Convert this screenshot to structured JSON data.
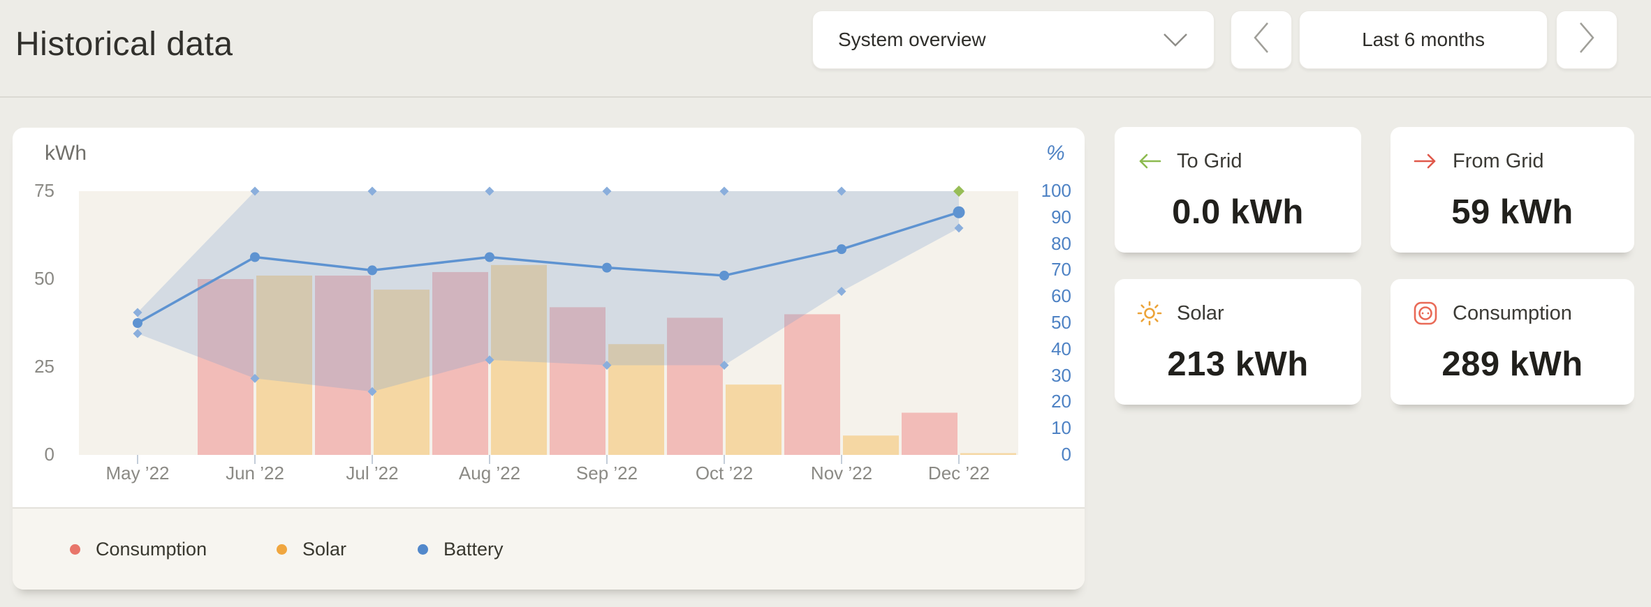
{
  "page": {
    "title": "Historical data"
  },
  "header": {
    "view_selector": {
      "value": "System overview"
    },
    "period_selector": {
      "label": "Last 6 months"
    }
  },
  "chart_card": {
    "left_axis_unit": "kWh",
    "right_axis_unit": "%",
    "legend": [
      {
        "label": "Consumption",
        "color": "#E8756A"
      },
      {
        "label": "Solar",
        "color": "#F0A63F"
      },
      {
        "label": "Battery",
        "color": "#5288CB"
      }
    ]
  },
  "chart_data": {
    "type": "combo",
    "categories": [
      "May ’22",
      "Jun ’22",
      "Jul ’22",
      "Aug ’22",
      "Sep ’22",
      "Oct ’22",
      "Nov ’22",
      "Dec ’22"
    ],
    "left_axis": {
      "unit": "kWh",
      "min": 0,
      "max": 75,
      "ticks": [
        0,
        25,
        50,
        75
      ]
    },
    "right_axis": {
      "unit": "%",
      "min": 0,
      "max": 100,
      "ticks": [
        0,
        10,
        20,
        30,
        40,
        50,
        60,
        70,
        80,
        90,
        100
      ]
    },
    "grid": "off",
    "plot_background": "#F5F2EB",
    "series": [
      {
        "name": "Consumption",
        "type": "bar",
        "axis": "kWh",
        "color": "#F2BCB8",
        "values": [
          null,
          50,
          51,
          52,
          42,
          39,
          40,
          12
        ]
      },
      {
        "name": "Solar",
        "type": "bar",
        "axis": "kWh",
        "color": "#F5D7A3",
        "values": [
          null,
          51,
          47,
          54,
          31.5,
          20,
          5.5,
          0.5
        ]
      },
      {
        "name": "Battery",
        "type": "line",
        "axis": "%",
        "color": "#5E93D1",
        "marker_color": "#8AAEDC",
        "band_fill": "rgba(126,161,207,0.28)",
        "values": [
          50,
          75,
          70,
          75,
          71,
          68,
          78,
          92
        ],
        "band_min": [
          46,
          29,
          24,
          36,
          34,
          34,
          62,
          86
        ],
        "band_max": [
          54,
          100,
          100,
          100,
          100,
          100,
          100,
          100
        ],
        "end_marker": {
          "index": 7,
          "value": 100,
          "color": "#97BD57"
        }
      }
    ]
  },
  "cards": [
    {
      "label": "To Grid",
      "value": "0.0 kWh",
      "icon": "arrow-left-icon",
      "icon_color": "#8CBA4F"
    },
    {
      "label": "From Grid",
      "value": "59 kWh",
      "icon": "arrow-right-icon",
      "icon_color": "#E0584A"
    },
    {
      "label": "Solar",
      "value": "213 kWh",
      "icon": "sun-icon",
      "icon_color": "#ECA338"
    },
    {
      "label": "Consumption",
      "value": "289 kWh",
      "icon": "socket-icon",
      "icon_color": "#E96A57"
    }
  ]
}
